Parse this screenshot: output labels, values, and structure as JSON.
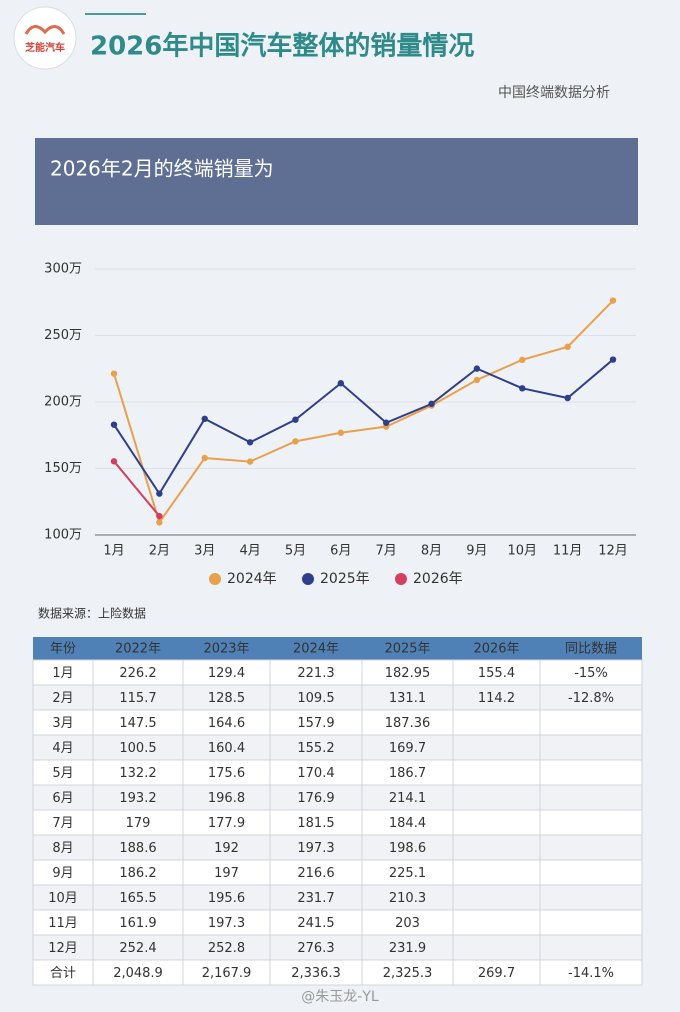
{
  "header": {
    "logo": "芝能汽车",
    "title": "2026年中国汽车整体的销量情况",
    "subtitle": "中国终端数据分析"
  },
  "banner": "2026年2月的终端销量为",
  "chart_data": {
    "type": "line",
    "categories": [
      "1月",
      "2月",
      "3月",
      "4月",
      "5月",
      "6月",
      "7月",
      "8月",
      "9月",
      "10月",
      "11月",
      "12月"
    ],
    "series": [
      {
        "name": "2024年",
        "color": "#e9a04c",
        "values": [
          221.3,
          109.5,
          157.9,
          155.2,
          170.4,
          176.9,
          181.5,
          197.3,
          216.6,
          231.7,
          241.5,
          276.3
        ]
      },
      {
        "name": "2025年",
        "color": "#2f3f8c",
        "values": [
          182.95,
          131.1,
          187.36,
          169.7,
          186.7,
          214.1,
          184.4,
          198.6,
          225.1,
          210.3,
          203,
          231.9
        ]
      },
      {
        "name": "2026年",
        "color": "#d3405f",
        "values": [
          155.4,
          114.2,
          null,
          null,
          null,
          null,
          null,
          null,
          null,
          null,
          null,
          null
        ]
      }
    ],
    "ylim": [
      100,
      300
    ],
    "yticks": [
      {
        "value": 100,
        "label": "100万"
      },
      {
        "value": 150,
        "label": "150万"
      },
      {
        "value": 200,
        "label": "200万"
      },
      {
        "value": 250,
        "label": "250万"
      },
      {
        "value": 300,
        "label": "300万"
      }
    ],
    "grid": true,
    "legend": "bottom"
  },
  "source": "数据来源：上险数据",
  "table": {
    "header": [
      "年份",
      "2022年",
      "2023年",
      "2024年",
      "2025年",
      "2026年",
      "同比数据"
    ],
    "rows": [
      [
        "1月",
        "226.2",
        "129.4",
        "221.3",
        "182.95",
        "155.4",
        "-15%"
      ],
      [
        "2月",
        "115.7",
        "128.5",
        "109.5",
        "131.1",
        "114.2",
        "-12.8%"
      ],
      [
        "3月",
        "147.5",
        "164.6",
        "157.9",
        "187.36",
        "",
        ""
      ],
      [
        "4月",
        "100.5",
        "160.4",
        "155.2",
        "169.7",
        "",
        ""
      ],
      [
        "5月",
        "132.2",
        "175.6",
        "170.4",
        "186.7",
        "",
        ""
      ],
      [
        "6月",
        "193.2",
        "196.8",
        "176.9",
        "214.1",
        "",
        ""
      ],
      [
        "7月",
        "179",
        "177.9",
        "181.5",
        "184.4",
        "",
        ""
      ],
      [
        "8月",
        "188.6",
        "192",
        "197.3",
        "198.6",
        "",
        ""
      ],
      [
        "9月",
        "186.2",
        "197",
        "216.6",
        "225.1",
        "",
        ""
      ],
      [
        "10月",
        "165.5",
        "195.6",
        "231.7",
        "210.3",
        "",
        ""
      ],
      [
        "11月",
        "161.9",
        "197.3",
        "241.5",
        "203",
        "",
        ""
      ],
      [
        "12月",
        "252.4",
        "252.8",
        "276.3",
        "231.9",
        "",
        ""
      ],
      [
        "合计",
        "2,048.9",
        "2,167.9",
        "2,336.3",
        "2,325.3",
        "269.7",
        "-14.1%"
      ]
    ]
  },
  "footer": {
    "watermark": "@朱玉龙-YL"
  }
}
